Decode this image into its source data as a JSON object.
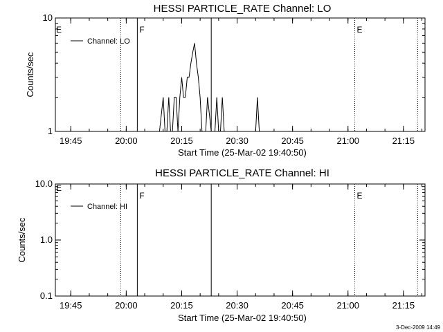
{
  "chart_data": [
    {
      "type": "line",
      "title": "HESSI PARTICLE_RATE Channel: LO",
      "xlabel": "Start Time (25-Mar-02 19:40:50)",
      "ylabel": "Counts/sec",
      "y_scale": "log",
      "ylim": [
        1,
        10
      ],
      "y_ticks": [
        {
          "value": 1,
          "label": "1"
        },
        {
          "value": 10,
          "label": "10"
        }
      ],
      "xlim": [
        "19:40:50",
        "21:20:50"
      ],
      "x_ticks": [
        "19:45",
        "20:00",
        "20:15",
        "20:30",
        "20:45",
        "21:00",
        "21:15"
      ],
      "legend": "upper-left",
      "series": [
        {
          "name": "Channel: LO",
          "x": [
            "20:09:00",
            "20:10:00",
            "20:10:30",
            "20:11:00",
            "20:11:30",
            "20:12:00",
            "20:12:30",
            "20:13:00",
            "20:13:30",
            "20:14:00",
            "20:14:30",
            "20:15:00",
            "20:15:30",
            "20:16:00",
            "20:16:30",
            "20:17:00",
            "20:17:30",
            "20:18:00",
            "20:18:30",
            "20:19:00",
            "20:19:30",
            "20:20:00",
            "20:20:30",
            "20:21:00",
            "20:21:30",
            "20:22:00",
            "20:23:00",
            "20:24:00",
            "20:24:30",
            "20:25:00",
            "20:25:30",
            "20:26:00",
            "20:26:30",
            "20:27:00",
            "20:35:00",
            "20:35:30",
            "20:36:00",
            "20:36:30"
          ],
          "y": [
            1,
            2,
            1,
            1,
            2,
            1,
            1,
            2,
            2,
            1,
            2,
            3,
            2,
            2,
            3,
            3,
            4,
            5,
            6,
            4,
            3,
            2,
            1,
            1,
            1,
            2,
            1,
            1,
            2,
            1,
            1,
            2,
            1,
            1,
            1,
            2,
            1,
            1
          ]
        }
      ],
      "event_markers": [
        {
          "time": "19:58:30",
          "label": "",
          "style": "dotted"
        },
        {
          "time": "20:03:00",
          "label": "F",
          "style": "solid"
        },
        {
          "time": "20:23:00",
          "label": "",
          "style": "solid"
        },
        {
          "time": "21:01:50",
          "label": "E",
          "style": "dotted"
        },
        {
          "time": "21:18:50",
          "label": "",
          "style": "dotted"
        }
      ],
      "left_edge_label": "E"
    },
    {
      "type": "line",
      "title": "HESSI PARTICLE_RATE Channel: HI",
      "xlabel": "Start Time (25-Mar-02 19:40:50)",
      "ylabel": "Counts/sec",
      "y_scale": "log",
      "ylim": [
        0.1,
        10
      ],
      "y_ticks": [
        {
          "value": 0.1,
          "label": "0.1"
        },
        {
          "value": 1,
          "label": "1.0"
        },
        {
          "value": 10,
          "label": "10.0"
        }
      ],
      "xlim": [
        "19:40:50",
        "21:20:50"
      ],
      "x_ticks": [
        "19:45",
        "20:00",
        "20:15",
        "20:30",
        "20:45",
        "21:00",
        "21:15"
      ],
      "legend": "upper-left",
      "series": [
        {
          "name": "Channel: HI",
          "x": [],
          "y": []
        }
      ],
      "event_markers": [
        {
          "time": "19:58:30",
          "label": "",
          "style": "dotted"
        },
        {
          "time": "20:03:00",
          "label": "F",
          "style": "solid"
        },
        {
          "time": "20:23:00",
          "label": "",
          "style": "solid"
        },
        {
          "time": "21:01:50",
          "label": "E",
          "style": "dotted"
        },
        {
          "time": "21:18:50",
          "label": "",
          "style": "dotted"
        }
      ],
      "left_edge_label": "E"
    }
  ],
  "footer": {
    "timestamp": "3-Dec-2009 14:49"
  }
}
